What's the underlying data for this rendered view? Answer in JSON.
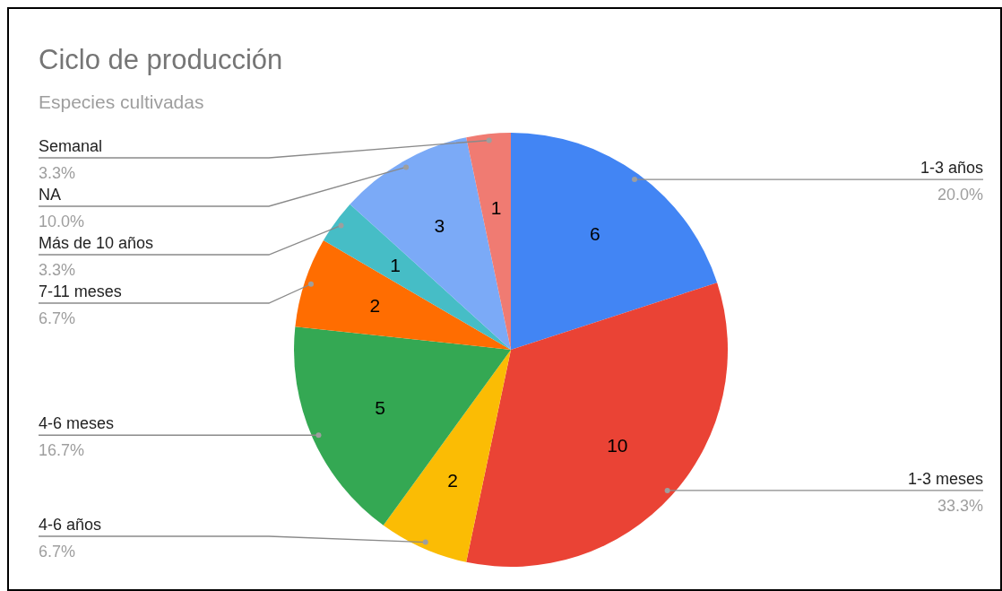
{
  "chart_data": {
    "type": "pie",
    "title": "Ciclo de producción",
    "subtitle": "Especies cultivadas",
    "categories": [
      "1-3 años",
      "1-3 meses",
      "4-6 años",
      "4-6 meses",
      "7-11 meses",
      "Más de 10 años",
      "NA",
      "Semanal"
    ],
    "values": [
      20.0,
      33.3,
      6.7,
      16.7,
      6.7,
      3.3,
      10.0,
      3.3
    ],
    "colors": [
      "#4285f4",
      "#ea4335",
      "#fbbc04",
      "#34a853",
      "#ff6d01",
      "#46bdc6",
      "#7baaf7",
      "#f07b72"
    ],
    "value_labels": [
      "20.0%",
      "33.3%",
      "6.7%",
      "16.7%",
      "6.7%",
      "3.3%",
      "10.0%",
      "3.3%"
    ],
    "annotations": [
      {
        "text": "6",
        "x": "1-3 años"
      },
      {
        "text": "10",
        "x": "1-3 meses"
      },
      {
        "text": "2",
        "x": "4-6 años"
      },
      {
        "text": "5",
        "x": "4-6 meses"
      },
      {
        "text": "2",
        "x": "7-11 meses"
      },
      {
        "text": "1",
        "x": "Más de 10 años"
      },
      {
        "text": "3",
        "x": "NA"
      },
      {
        "text": "1",
        "x": "Semanal"
      }
    ]
  }
}
